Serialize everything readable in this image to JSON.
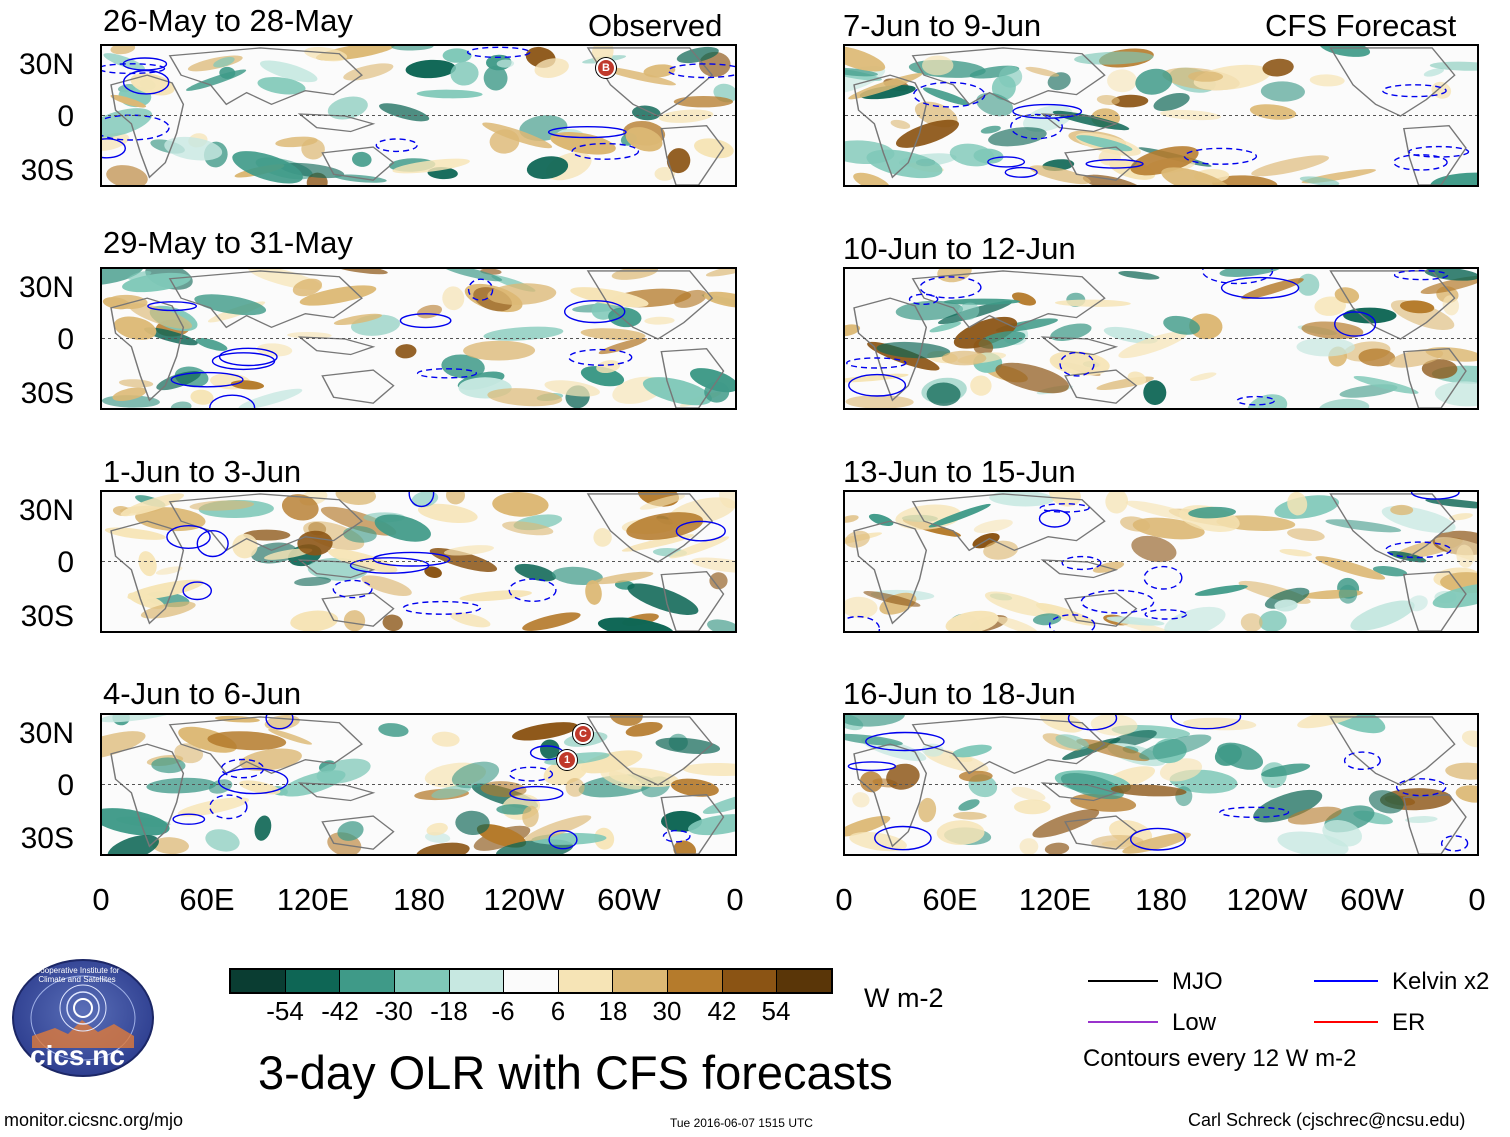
{
  "headers": {
    "left": "Observed",
    "right": "CFS Forecast"
  },
  "panels_left": [
    {
      "title": "26-May to 28-May"
    },
    {
      "title": "29-May to 31-May"
    },
    {
      "title": "1-Jun to 3-Jun"
    },
    {
      "title": "4-Jun to 6-Jun"
    }
  ],
  "panels_right": [
    {
      "title": "7-Jun to 9-Jun"
    },
    {
      "title": "10-Jun to 12-Jun"
    },
    {
      "title": "13-Jun to 15-Jun"
    },
    {
      "title": "16-Jun to 18-Jun"
    }
  ],
  "lat_labels": [
    "30N",
    "0",
    "30S"
  ],
  "lon_labels": [
    "0",
    "60E",
    "120E",
    "180",
    "120W",
    "60W",
    "0"
  ],
  "storm_markers": [
    {
      "panel": 0,
      "label": "B"
    },
    {
      "panel": 3,
      "label": "C"
    },
    {
      "panel": 3,
      "label": "1"
    }
  ],
  "colorbar": {
    "ticks": [
      "-54",
      "-42",
      "-30",
      "-18",
      "-6",
      "6",
      "18",
      "30",
      "42",
      "54"
    ],
    "colors": [
      "#0a3d32",
      "#0e6655",
      "#3f9a88",
      "#7fc8b8",
      "#c7e8e1",
      "#fbfbfb",
      "#f6e4b6",
      "#dcb874",
      "#b57b2c",
      "#8b5414",
      "#5a3608"
    ],
    "units": "W m-2"
  },
  "legend": {
    "items": [
      {
        "label": "MJO",
        "color": "#000000"
      },
      {
        "label": "Kelvin x2",
        "color": "#0000ff"
      },
      {
        "label": "Low",
        "color": "#9933cc"
      },
      {
        "label": "ER",
        "color": "#ff0000"
      }
    ],
    "note": "Contours every 12 W m-2"
  },
  "logo": {
    "text": "cics.nc",
    "ring_text": "Cooperative Institute for Climate and Satellites"
  },
  "main_title": "3-day OLR with CFS forecasts",
  "footer": {
    "left": "monitor.cicsnc.org/mjo",
    "center": "Tue 2016-06-07 1515 UTC",
    "right": "Carl Schreck (cjschrec@ncsu.edu)"
  }
}
